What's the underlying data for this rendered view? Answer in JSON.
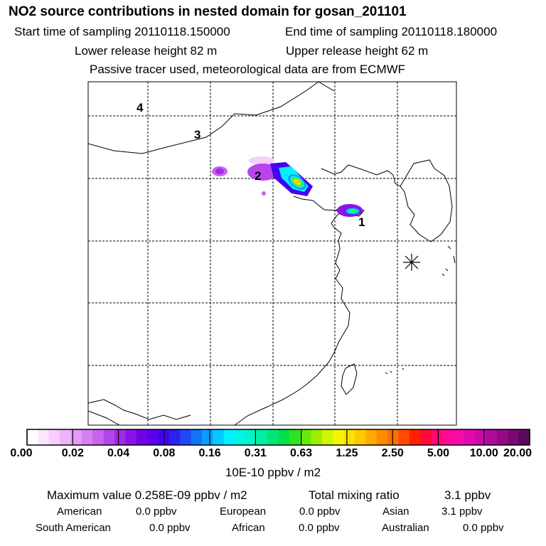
{
  "header": {
    "title": "NO2 source contributions in nested domain for gosan_201101",
    "start_label": "Start time of sampling 20110118.150000",
    "end_label": "End time of sampling 20110118.180000",
    "lower_release": "Lower release height   82 m",
    "upper_release": "Upper release height   62 m",
    "tracer_note": "Passive tracer used, meteorological data are from ECMWF"
  },
  "map": {
    "region_labels": [
      "1",
      "2",
      "3",
      "4"
    ],
    "receptor_symbol": "gosan-receptor-marker"
  },
  "colorbar": {
    "tick_labels": [
      "0.00",
      "0.02",
      "0.04",
      "0.08",
      "0.16",
      "0.31",
      "0.63",
      "1.25",
      "2.50",
      "5.00",
      "10.00",
      "20.00"
    ],
    "unit": "10E-10 ppbv / m2",
    "colors": [
      "#ffffff",
      "#fbe6fd",
      "#f6cdfb",
      "#f0b3f8",
      "#e79af5",
      "#d67ff2",
      "#c862ef",
      "#b745ec",
      "#a328e9",
      "#8c12e6",
      "#7300e6",
      "#5c00ea",
      "#4400ee",
      "#2e1ff2",
      "#1f48f6",
      "#1373f9",
      "#0c9efc",
      "#06c8fd",
      "#00f0ff",
      "#00f5e6",
      "#00f5c8",
      "#00f0a0",
      "#00e675",
      "#00e04a",
      "#2de51e",
      "#64ea0a",
      "#9cef00",
      "#d0f500",
      "#f5f500",
      "#ffe100",
      "#ffc800",
      "#ffaa00",
      "#ff8c00",
      "#ff6e00",
      "#ff4a00",
      "#ff2000",
      "#ff0a37",
      "#ff0a6e",
      "#ff0a96",
      "#f50aaa",
      "#e00aaa",
      "#c80aaa",
      "#b00a9b",
      "#960a87",
      "#7a0a72",
      "#5a0a5a"
    ]
  },
  "summary": {
    "max_value_label": "Maximum value  0.258E-09 ppbv / m2",
    "total_label": "Total mixing ratio",
    "total_value": "3.1 ppbv",
    "american_label": "American",
    "american_value": "0.0 ppbv",
    "european_label": "European",
    "european_value": "0.0 ppbv",
    "asian_label": "Asian",
    "asian_value": "3.1 ppbv",
    "south_american_label": "South American",
    "south_american_value": "0.0 ppbv",
    "african_label": "African",
    "african_value": "0.0 ppbv",
    "australian_label": "Australian",
    "australian_value": "0.0 ppbv"
  }
}
